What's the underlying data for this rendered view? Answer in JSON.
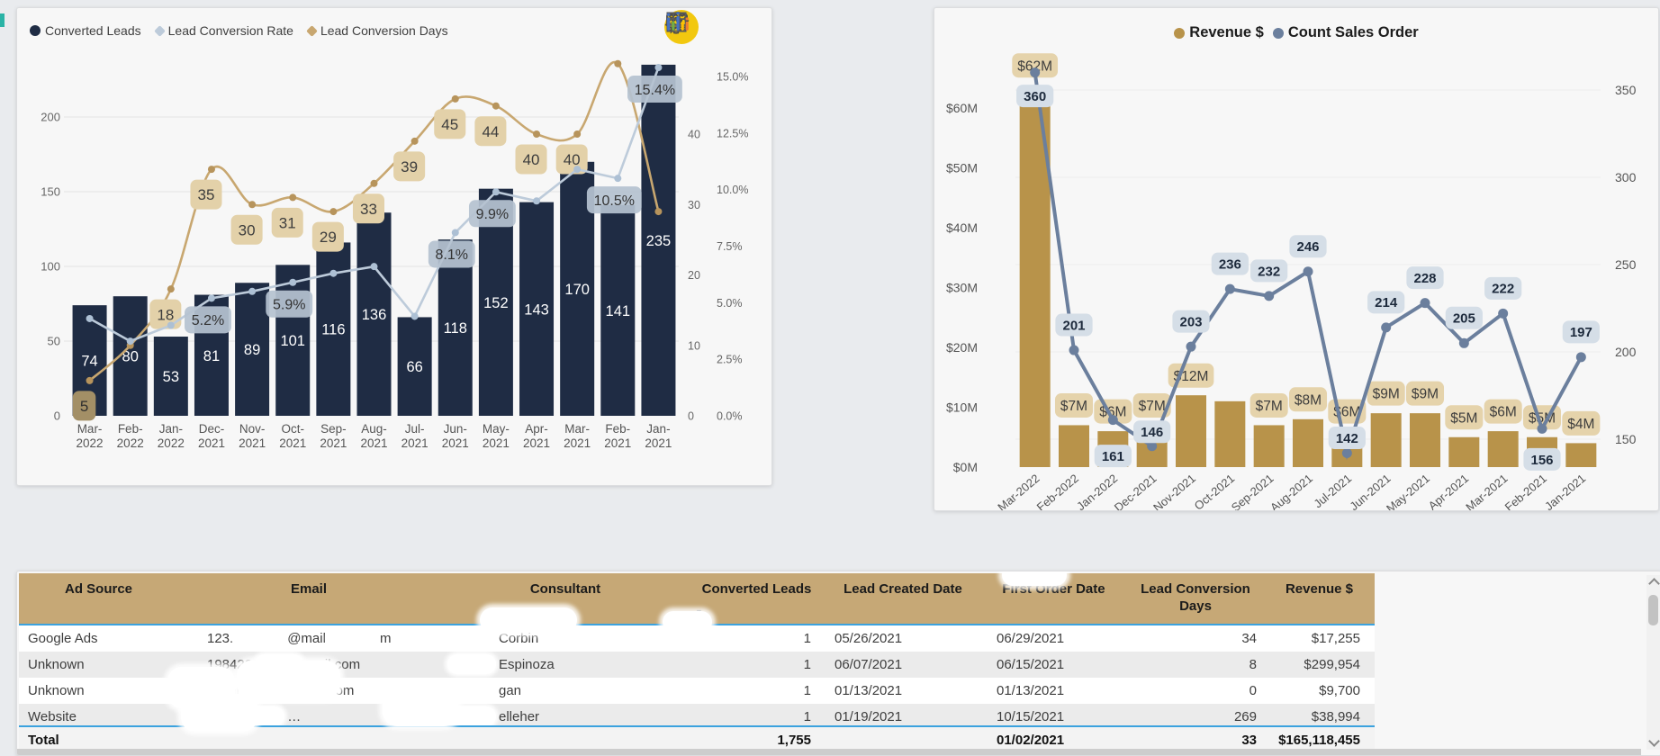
{
  "toolbar": {
    "icons": [
      {
        "name": "pencil-icon"
      },
      {
        "name": "comment-icon"
      },
      {
        "name": "gear-icon"
      },
      {
        "name": "grid-icon"
      },
      {
        "name": "chart-icon"
      }
    ],
    "pencil_bg": "#f2c80f"
  },
  "chart_data": [
    {
      "type": "combo",
      "title": "",
      "legend_position": "top-left",
      "grid": true,
      "categories": [
        "Mar-2022",
        "Feb-2022",
        "Jan-2022",
        "Dec-2021",
        "Nov-2021",
        "Oct-2021",
        "Sep-2021",
        "Aug-2021",
        "Jul-2021",
        "Jun-2021",
        "May-2021",
        "Apr-2021",
        "Mar-2021",
        "Feb-2021",
        "Jan-2021"
      ],
      "series": [
        {
          "name": "Converted Leads",
          "type": "bar",
          "color": "#1f2c44",
          "values": [
            74,
            80,
            53,
            81,
            89,
            101,
            116,
            136,
            66,
            118,
            152,
            143,
            170,
            141,
            235
          ]
        },
        {
          "name": "Lead Conversion Rate",
          "type": "line",
          "axis": "percent",
          "color": "#bdcbda",
          "marker_color": "#adc0d4",
          "values": [
            4.3,
            3.3,
            4.0,
            5.2,
            5.5,
            5.9,
            6.3,
            6.6,
            4.4,
            8.1,
            9.9,
            9.5,
            10.9,
            10.5,
            15.4
          ],
          "labels": [
            null,
            null,
            null,
            "5.2%",
            null,
            "5.9%",
            null,
            null,
            null,
            "8.1%",
            "9.9%",
            null,
            null,
            "10.5%",
            "15.4%"
          ],
          "badge_bg": "#b5c2d0",
          "badge_text": "#333333"
        },
        {
          "name": "Lead Conversion Days",
          "type": "line",
          "axis": "days",
          "smooth": true,
          "color": "#c8a770",
          "marker_color": "#b7945c",
          "values": [
            5,
            10,
            18,
            35,
            30,
            31,
            29,
            33,
            39,
            45,
            44,
            40,
            40,
            50,
            29
          ],
          "labels": [
            "5",
            null,
            "18",
            "35",
            "30",
            "31",
            "29",
            "33",
            "39",
            "45",
            "44",
            "40",
            "40",
            null,
            null
          ],
          "badge_bg": "#e3d1a9",
          "badge_text": "#3d3d3d",
          "first_badge_bg": "#a38f66",
          "first_badge_text": "#2f2f2f"
        }
      ],
      "y_left": {
        "label": "",
        "ticks": [
          0,
          50,
          100,
          150,
          200
        ],
        "max": 240
      },
      "y_days": {
        "ticks": [
          0,
          10,
          20,
          30,
          40
        ],
        "max": 50
      },
      "y_pct": {
        "ticks": [
          "0.0%",
          "2.5%",
          "5.0%",
          "7.5%",
          "10.0%",
          "12.5%",
          "15.0%"
        ],
        "max": 15.6
      },
      "legend": [
        {
          "label": "Converted Leads",
          "color": "#1f2c44",
          "marker": "circle"
        },
        {
          "label": "Lead Conversion Rate",
          "color": "#bdcbda",
          "marker": "diamond"
        },
        {
          "label": "Lead Conversion Days",
          "color": "#c8a770",
          "marker": "diamond"
        }
      ]
    },
    {
      "type": "combo",
      "title": "",
      "legend_position": "top-center",
      "grid": true,
      "categories": [
        "Mar-2022",
        "Feb-2022",
        "Jan-2022",
        "Dec-2021",
        "Nov-2021",
        "Oct-2021",
        "Sep-2021",
        "Aug-2021",
        "Jul-2021",
        "Jun-2021",
        "May-2021",
        "Apr-2021",
        "Mar-2021",
        "Feb-2021",
        "Jan-2021"
      ],
      "series": [
        {
          "name": "Revenue $",
          "type": "bar",
          "unit": "$M",
          "color": "#b8934a",
          "values": [
            62,
            7,
            6,
            7,
            12,
            11,
            7,
            8,
            6,
            9,
            9,
            5,
            6,
            5,
            4
          ],
          "labels": [
            "$62M",
            "$7M",
            "$6M",
            "$7M",
            "$12M",
            null,
            "$7M",
            "$8M",
            "$6M",
            "$9M",
            "$9M",
            "$5M",
            "$6M",
            "$5M",
            "$4M"
          ],
          "label_dy": [
            -34,
            -22,
            -22,
            -22,
            -22,
            -22,
            -22,
            -22,
            -22,
            -22,
            -22,
            -22,
            -22,
            -22,
            -22
          ],
          "badge_bg": "#e5d3ab",
          "badge_text": "#3d3d3d"
        },
        {
          "name": "Count Sales Order",
          "type": "line",
          "color": "#6b7f9d",
          "marker_color": "#6b7f9d",
          "values": [
            360,
            201,
            161,
            146,
            203,
            236,
            232,
            246,
            142,
            214,
            228,
            205,
            222,
            156,
            197
          ],
          "labels": [
            "360",
            "201",
            "161",
            "146",
            "203",
            "236",
            "232",
            "246",
            "142",
            "214",
            "228",
            "205",
            "222",
            "156",
            "197"
          ],
          "label_dy": [
            26,
            -28,
            40,
            -16,
            -28,
            -28,
            -28,
            -28,
            -17,
            -28,
            -28,
            -28,
            -28,
            34,
            -28
          ],
          "badge_bg": "#d5dee7",
          "badge_text": "#1d2a3c"
        }
      ],
      "y_left": {
        "ticks": [
          "$0M",
          "$10M",
          "$20M",
          "$30M",
          "$40M",
          "$50M",
          "$60M"
        ]
      },
      "y_right": {
        "ticks": [
          150,
          200,
          250,
          300,
          350
        ]
      },
      "legend": [
        {
          "label": "Revenue $",
          "color": "#b8934a",
          "marker": "circle"
        },
        {
          "label": "Count Sales Order",
          "color": "#6b7f9d",
          "marker": "circle"
        }
      ]
    }
  ],
  "table": {
    "columns": [
      {
        "label": "Ad Source",
        "align": "left"
      },
      {
        "label": "Email",
        "align": "left"
      },
      {
        "label": "Consultant",
        "align": "left"
      },
      {
        "label": "Converted Leads",
        "align": "right",
        "sort": "desc",
        "sort_glyph": "▼"
      },
      {
        "label": "Lead Created Date",
        "align": "left"
      },
      {
        "label": "First Order Date",
        "align": "left"
      },
      {
        "label": "Lead Conversion Days",
        "align": "right"
      },
      {
        "label": "Revenue $",
        "align": "right"
      }
    ],
    "rows": [
      {
        "ad_source": "Google Ads",
        "email": [
          "123.",
          "@mail",
          "m"
        ],
        "consultant": [
          "",
          "Corbin"
        ],
        "converted": "1",
        "created": "05/26/2021",
        "first_order": "06/29/2021",
        "days": "34",
        "revenue": "$17,255"
      },
      {
        "ad_source": "Unknown",
        "email": [
          "198420",
          "mail.com"
        ],
        "consultant": [
          "",
          "Espinoza"
        ],
        "converted": "1",
        "created": "06/07/2021",
        "first_order": "06/15/2021",
        "days": "8",
        "revenue": "$299,954"
      },
      {
        "ad_source": "Unknown",
        "email": [
          "19sarah.ga",
          "com"
        ],
        "consultant": [
          "",
          "gan"
        ],
        "converted": "1",
        "created": "01/13/2021",
        "first_order": "01/13/2021",
        "days": "0",
        "revenue": "$9,700"
      },
      {
        "ad_source": "Website",
        "email": [
          "1rak",
          "…"
        ],
        "consultant": [
          "",
          "elleher"
        ],
        "converted": "1",
        "created": "01/19/2021",
        "first_order": "10/15/2021",
        "days": "269",
        "revenue": "$38,994"
      }
    ],
    "total": {
      "label": "Total",
      "converted": "1,755",
      "first_order": "01/02/2021",
      "days": "33",
      "revenue": "$165,118,455"
    }
  }
}
